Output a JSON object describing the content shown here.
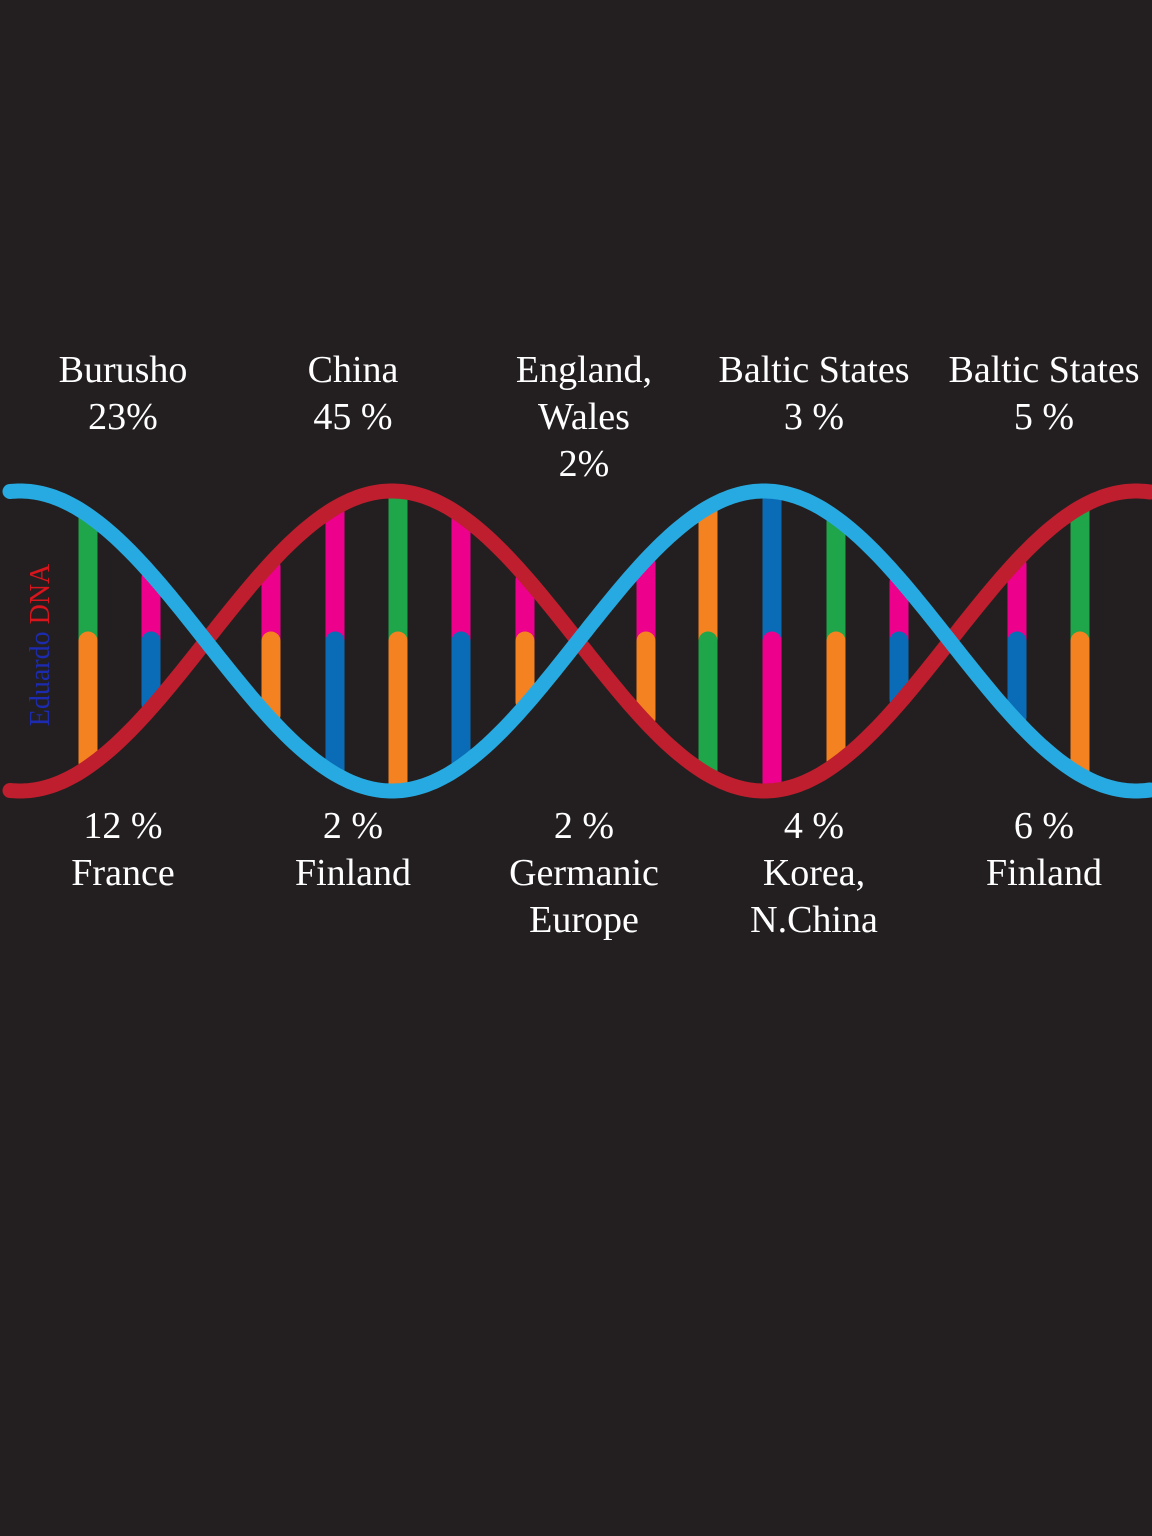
{
  "watermark": {
    "name": "Eduardo",
    "suffix": "DNA",
    "name_color": "#1c2bb0",
    "suffix_color": "#d8141c"
  },
  "colors": {
    "background": "#231f20",
    "strand_red": "#be1e2d",
    "strand_blue": "#27aae1",
    "green": "#1fa54a",
    "orange": "#f58220",
    "pink": "#ec008c",
    "blue": "#0a6cb7",
    "text": "#ffffff"
  },
  "top_labels": [
    {
      "lines": [
        "Burusho",
        "23%"
      ]
    },
    {
      "lines": [
        "China",
        "45 %"
      ]
    },
    {
      "lines": [
        "England,",
        "Wales",
        "2%"
      ]
    },
    {
      "lines": [
        "Baltic States",
        "3 %"
      ]
    },
    {
      "lines": [
        "Baltic States",
        "5 %"
      ]
    }
  ],
  "bottom_labels": [
    {
      "lines": [
        "12 %",
        "France"
      ]
    },
    {
      "lines": [
        "2 %",
        "Finland"
      ]
    },
    {
      "lines": [
        "2 %",
        "Germanic",
        "Europe"
      ]
    },
    {
      "lines": [
        "4 %",
        "Korea,",
        "N.China"
      ]
    },
    {
      "lines": [
        "6 %",
        "Finland"
      ]
    }
  ],
  "base_pairs": [
    {
      "top": "green",
      "bottom": "orange"
    },
    {
      "top": "pink",
      "bottom": "blue"
    },
    {
      "top": "pink",
      "bottom": "orange"
    },
    {
      "top": "pink",
      "bottom": "blue"
    },
    {
      "top": "green",
      "bottom": "orange"
    },
    {
      "top": "pink",
      "bottom": "blue"
    },
    {
      "top": "pink",
      "bottom": "orange"
    },
    {
      "top": "pink",
      "bottom": "orange"
    },
    {
      "top": "orange",
      "bottom": "green"
    },
    {
      "top": "blue",
      "bottom": "pink"
    },
    {
      "top": "green",
      "bottom": "orange"
    },
    {
      "top": "pink",
      "bottom": "blue"
    },
    {
      "top": "pink",
      "bottom": "blue"
    },
    {
      "top": "green",
      "bottom": "orange"
    }
  ]
}
